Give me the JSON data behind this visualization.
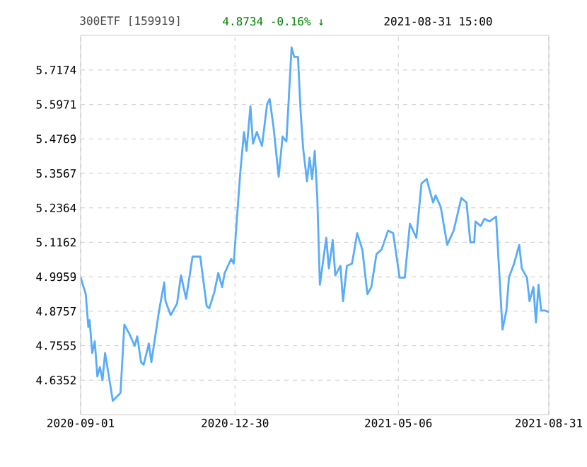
{
  "chart_data": {
    "type": "line",
    "title": "300ETF [159919]",
    "annotations": [
      "4.8734 -0.16% ↓",
      "2021-08-31 15:00"
    ],
    "x": [
      "2020-09-01",
      "2020-09-05",
      "2020-09-07",
      "2020-09-08",
      "2020-09-10",
      "2020-09-12",
      "2020-09-14",
      "2020-09-16",
      "2020-09-18",
      "2020-09-20",
      "2020-09-23",
      "2020-09-26",
      "2020-10-02",
      "2020-10-05",
      "2020-10-09",
      "2020-10-13",
      "2020-10-15",
      "2020-10-18",
      "2020-10-20",
      "2020-10-24",
      "2020-10-26",
      "2020-11-01",
      "2020-11-05",
      "2020-11-06",
      "2020-11-10",
      "2020-11-15",
      "2020-11-18",
      "2020-11-22",
      "2020-11-27",
      "2020-12-03",
      "2020-12-08",
      "2020-12-10",
      "2020-12-14",
      "2020-12-17",
      "2020-12-20",
      "2020-12-22",
      "2020-12-27",
      "2020-12-29",
      "2021-01-03",
      "2021-01-06",
      "2021-01-08",
      "2021-01-11",
      "2021-01-13",
      "2021-01-16",
      "2021-01-20",
      "2021-01-24",
      "2021-01-26",
      "2021-01-29",
      "2021-02-02",
      "2021-02-05",
      "2021-02-08",
      "2021-02-12",
      "2021-02-14",
      "2021-02-17",
      "2021-02-19",
      "2021-02-21",
      "2021-02-24",
      "2021-02-26",
      "2021-02-28",
      "2021-03-02",
      "2021-03-04",
      "2021-03-06",
      "2021-03-11",
      "2021-03-13",
      "2021-03-16",
      "2021-03-18",
      "2021-03-22",
      "2021-03-24",
      "2021-03-27",
      "2021-03-31",
      "2021-04-04",
      "2021-04-08",
      "2021-04-12",
      "2021-04-15",
      "2021-04-19",
      "2021-04-23",
      "2021-04-28",
      "2021-05-02",
      "2021-05-07",
      "2021-05-11",
      "2021-05-15",
      "2021-05-20",
      "2021-05-24",
      "2021-05-28",
      "2021-06-02",
      "2021-06-04",
      "2021-06-08",
      "2021-06-13",
      "2021-06-18",
      "2021-06-24",
      "2021-06-28",
      "2021-07-01",
      "2021-07-04",
      "2021-07-05",
      "2021-07-09",
      "2021-07-12",
      "2021-07-16",
      "2021-07-21",
      "2021-07-26",
      "2021-07-29",
      "2021-07-31",
      "2021-08-04",
      "2021-08-08",
      "2021-08-10",
      "2021-08-14",
      "2021-08-16",
      "2021-08-19",
      "2021-08-21",
      "2021-08-23",
      "2021-08-25",
      "2021-08-28",
      "2021-08-31"
    ],
    "series": [
      {
        "color": "#5aacf8",
        "values": [
          4.994,
          4.935,
          4.821,
          4.845,
          4.73,
          4.771,
          4.648,
          4.681,
          4.635,
          4.73,
          4.648,
          4.563,
          4.591,
          4.829,
          4.796,
          4.755,
          4.788,
          4.698,
          4.689,
          4.763,
          4.698,
          4.878,
          4.976,
          4.911,
          4.862,
          4.903,
          5.001,
          4.919,
          5.066,
          5.066,
          4.894,
          4.886,
          4.943,
          5.009,
          4.96,
          5.009,
          5.058,
          5.042,
          5.353,
          5.501,
          5.435,
          5.591,
          5.46,
          5.501,
          5.452,
          5.599,
          5.616,
          5.517,
          5.345,
          5.485,
          5.468,
          5.796,
          5.763,
          5.763,
          5.575,
          5.444,
          5.329,
          5.411,
          5.337,
          5.435,
          5.271,
          4.968,
          5.132,
          5.025,
          5.124,
          5.001,
          5.034,
          4.911,
          5.034,
          5.042,
          5.148,
          5.091,
          4.935,
          4.96,
          5.075,
          5.091,
          5.157,
          5.148,
          4.993,
          4.993,
          5.181,
          5.132,
          5.321,
          5.337,
          5.255,
          5.28,
          5.239,
          5.107,
          5.157,
          5.271,
          5.255,
          5.116,
          5.116,
          5.189,
          5.173,
          5.198,
          5.189,
          5.206,
          4.812,
          4.878,
          4.993,
          5.042,
          5.107,
          5.025,
          4.993,
          4.911,
          4.96,
          4.837,
          4.968,
          4.878,
          4.878,
          4.873
        ]
      }
    ],
    "xlim": [
      "2020-09-01",
      "2021-08-31"
    ],
    "xticks": [
      {
        "value": "2020-09-01",
        "label": "2020-09-01"
      },
      {
        "value": "2020-12-30",
        "label": "2020-12-30"
      },
      {
        "value": "2021-05-06",
        "label": "2021-05-06"
      },
      {
        "value": "2021-08-31",
        "label": "2021-08-31"
      }
    ],
    "ylim": [
      4.515,
      5.838
    ],
    "yticks": [
      4.6352,
      4.7555,
      4.8757,
      4.9959,
      5.1162,
      5.2364,
      5.3567,
      5.4769,
      5.5971,
      5.7174
    ],
    "grid": true,
    "marker": "none",
    "line_style": "solid"
  }
}
